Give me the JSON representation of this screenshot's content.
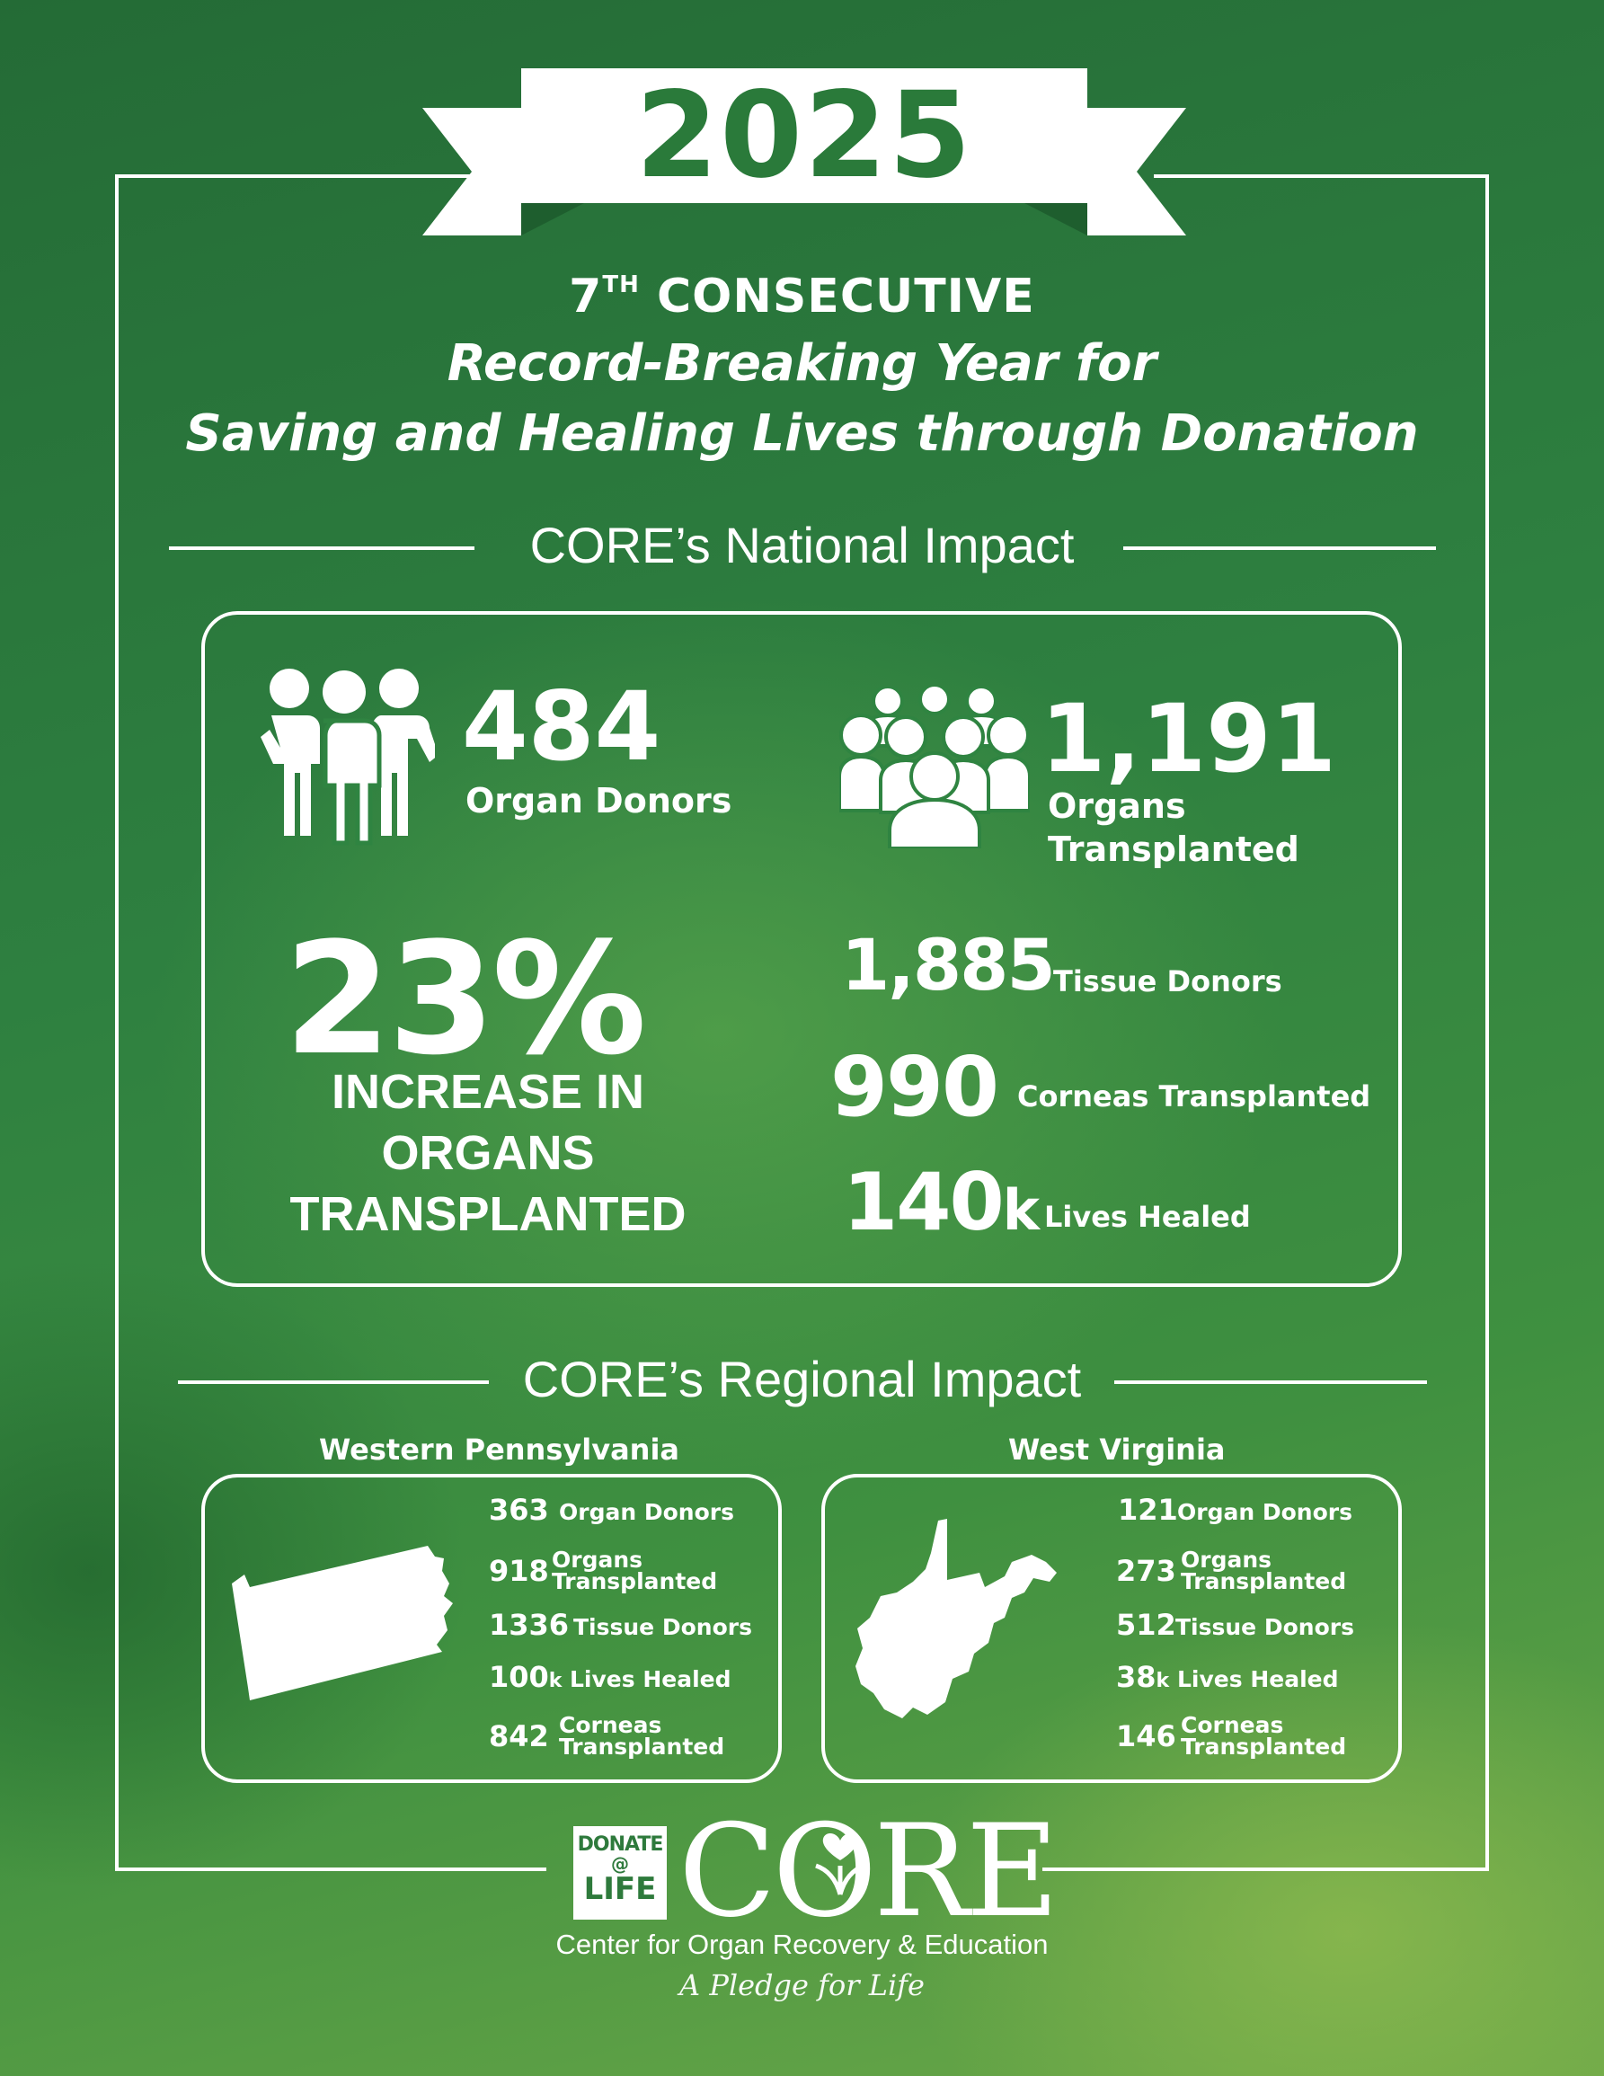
{
  "banner": {
    "year": "2025"
  },
  "headline": {
    "line1_num": "7",
    "line1_sup": "TH",
    "line1_rest": "CONSECUTIVE",
    "line2": "Record-Breaking Year for",
    "line3": "Saving and Healing Lives through Donation"
  },
  "national": {
    "heading": "CORE’s National Impact",
    "organ_donors": {
      "value": "484",
      "label": "Organ Donors",
      "icon": "people-group-icon"
    },
    "organs_transplanted": {
      "value": "1,191",
      "label_line1": "Organs",
      "label_line2": "Transplanted",
      "icon": "crowd-icon"
    },
    "increase": {
      "value": "23%",
      "line1": "INCREASE IN",
      "line2": "ORGANS",
      "line3": "TRANSPLANTED"
    },
    "tissue_donors": {
      "value": "1,885",
      "label": "Tissue Donors"
    },
    "corneas": {
      "value": "990",
      "label": "Corneas Transplanted"
    },
    "lives_healed": {
      "value": "140",
      "suffix": "k",
      "label": "Lives Healed"
    }
  },
  "regional": {
    "heading": "CORE’s Regional Impact",
    "regions": [
      {
        "name": "Western Pennsylvania",
        "icon": "pennsylvania-map-icon",
        "stats": {
          "organ_donors": {
            "value": "363",
            "label": "Organ Donors"
          },
          "organs_transplanted": {
            "value": "918",
            "label_line1": "Organs",
            "label_line2": "Transplanted"
          },
          "tissue_donors": {
            "value": "1336",
            "label": "Tissue Donors"
          },
          "lives_healed": {
            "value": "100",
            "suffix": "k",
            "label": "Lives Healed"
          },
          "corneas": {
            "value": "842",
            "label_line1": "Corneas",
            "label_line2": "Transplanted"
          }
        }
      },
      {
        "name": "West Virginia",
        "icon": "west-virginia-map-icon",
        "stats": {
          "organ_donors": {
            "value": "121",
            "label": "Organ Donors"
          },
          "organs_transplanted": {
            "value": "273",
            "label_line1": "Organs",
            "label_line2": "Transplanted"
          },
          "tissue_donors": {
            "value": "512",
            "label": "Tissue Donors"
          },
          "lives_healed": {
            "value": "38",
            "suffix": "k",
            "label": "Lives Healed"
          },
          "corneas": {
            "value": "146",
            "label_line1": "Corneas",
            "label_line2": "Transplanted"
          }
        }
      }
    ]
  },
  "footer": {
    "donate_life_line1": "DONATE",
    "donate_life_line2": "LIFE",
    "core_wordmark": "CORE",
    "full_name": "Center for Organ Recovery & Education",
    "tagline": "A Pledge for Life"
  },
  "colors": {
    "background_dark": "#246b36",
    "background_light": "#6ca848",
    "ribbon_text": "#2a7a3a",
    "foreground": "#ffffff"
  }
}
